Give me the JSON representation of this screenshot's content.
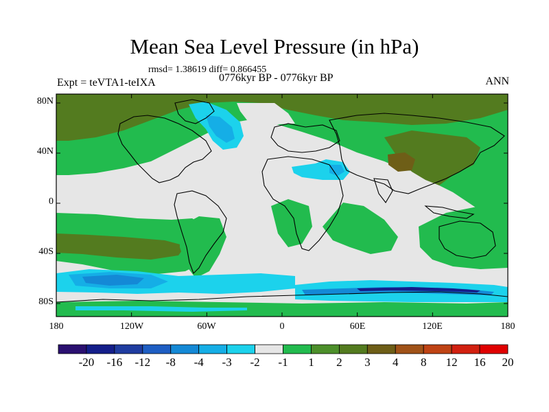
{
  "title": "Mean Sea Level Pressure (in hPa)",
  "stats": "rmsd= 1.38619 diff= 0.866455",
  "experiment": "Expt = teVTA1-teIXA",
  "period": "0776kyr BP - 0776kyr BP",
  "season": "ANN",
  "axes": {
    "lat_ticks": [
      "80N",
      "40N",
      "0",
      "40S",
      "80S"
    ],
    "lon_ticks": [
      "180",
      "120W",
      "60W",
      "0",
      "60E",
      "120E",
      "180"
    ]
  },
  "colorbar": {
    "colors": [
      "#2a1070",
      "#141e8a",
      "#1f3ca0",
      "#1e5ec3",
      "#1489d6",
      "#15aee6",
      "#1cd2ec",
      "#e6e6e6",
      "#22bb4e",
      "#4c8f2a",
      "#537b1f",
      "#6e5e17",
      "#a05218",
      "#bf4314",
      "#d22010",
      "#e00000"
    ],
    "labels": [
      "-20",
      "-16",
      "-12",
      "-8",
      "-4",
      "-3",
      "-2",
      "-1",
      "1",
      "2",
      "3",
      "4",
      "8",
      "12",
      "16",
      "20"
    ]
  },
  "palette": {
    "neutral": "#e6e6e6",
    "green": "#22bb4e",
    "darkgreen": "#4c8f2a",
    "olive": "#537b1f",
    "brown": "#6e5e17",
    "cyan": "#1cd2ec",
    "lightblue": "#15aee6",
    "blue": "#1489d6",
    "darkblue": "#1e5ec3",
    "navy": "#141e8a"
  }
}
